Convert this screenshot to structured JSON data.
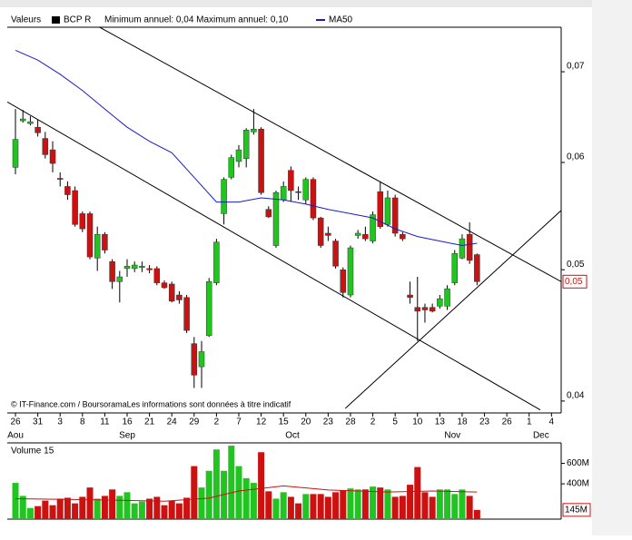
{
  "chart_data": [
    {
      "type": "candlestick",
      "legend_title": "Valeurs",
      "annotation": "Minimum annuel: 0,04 Maximum annuel: 0,10",
      "source": "© IT-Finance.com / BoursoramaLes informations sont données à titre indicatif",
      "log_y": true,
      "xlim": [
        -1.1,
        73.3
      ],
      "ylim": [
        0.0392,
        0.0755
      ],
      "yticks": [
        {
          "value": 0.04,
          "label": "0,04"
        },
        {
          "value": 0.05,
          "label": "0,05"
        },
        {
          "value": 0.06,
          "label": "0,06"
        },
        {
          "value": 0.07,
          "label": "0,07"
        }
      ],
      "xticks": [
        {
          "value": 0,
          "label": "26"
        },
        {
          "value": 3,
          "label": "31"
        },
        {
          "value": 6,
          "label": "3"
        },
        {
          "value": 9,
          "label": "8"
        },
        {
          "value": 12,
          "label": "11"
        },
        {
          "value": 15,
          "label": "16"
        },
        {
          "value": 18,
          "label": "21"
        },
        {
          "value": 21,
          "label": "24"
        },
        {
          "value": 24,
          "label": "29"
        },
        {
          "value": 27,
          "label": "2"
        },
        {
          "value": 30,
          "label": "7"
        },
        {
          "value": 33,
          "label": "12"
        },
        {
          "value": 36,
          "label": "15"
        },
        {
          "value": 39,
          "label": "20"
        },
        {
          "value": 42,
          "label": "23"
        },
        {
          "value": 45,
          "label": "28"
        },
        {
          "value": 48,
          "label": "2"
        },
        {
          "value": 51,
          "label": "5"
        },
        {
          "value": 54,
          "label": "10"
        },
        {
          "value": 57,
          "label": "13"
        },
        {
          "value": 60,
          "label": "18"
        },
        {
          "value": 63,
          "label": "23"
        },
        {
          "value": 66,
          "label": "26"
        },
        {
          "value": 69,
          "label": "1"
        },
        {
          "value": 72,
          "label": "4"
        }
      ],
      "month_ticks": [
        {
          "value": 0,
          "label": "Aou"
        },
        {
          "value": 15,
          "label": "Sep"
        },
        {
          "value": 37.2,
          "label": "Oct"
        },
        {
          "value": 58.7,
          "label": "Nov"
        },
        {
          "value": 70.6,
          "label": "Dec"
        }
      ],
      "series": [
        {
          "name": "BCP R",
          "color": "#000000",
          "up_color": "#22c422",
          "down_color": "#cc1111",
          "x": [
            0,
            1,
            2,
            3,
            4,
            5,
            6,
            7,
            8,
            9,
            10,
            11,
            12,
            13,
            14,
            15,
            16,
            17,
            18,
            19,
            20,
            21,
            22,
            23,
            24,
            25,
            26,
            27,
            28,
            29,
            30,
            31,
            32,
            33,
            34,
            35,
            36,
            37,
            38,
            39,
            40,
            41,
            42,
            43,
            44,
            45,
            46,
            47,
            48,
            49,
            50,
            51,
            52,
            53,
            54,
            55,
            56,
            57,
            58,
            59,
            60,
            61,
            62
          ],
          "open": [
            0.0595,
            0.0644,
            0.0641,
            0.0637,
            0.0625,
            0.0613,
            0.0584,
            0.0576,
            0.0572,
            0.055,
            0.055,
            0.051,
            0.0531,
            0.0507,
            0.049,
            0.0501,
            0.0501,
            0.0502,
            0.0501,
            0.0501,
            0.0489,
            0.0488,
            0.0479,
            0.0477,
            0.0441,
            0.0424,
            0.0447,
            0.0489,
            0.055,
            0.0585,
            0.0601,
            0.0604,
            0.0632,
            0.0635,
            0.0554,
            0.0521,
            0.0563,
            0.0592,
            0.0571,
            0.0563,
            0.0583,
            0.0546,
            0.0532,
            0.0525,
            0.05,
            0.0479,
            0.053,
            0.0531,
            0.0525,
            0.0571,
            0.054,
            0.0565,
            0.0531,
            0.0479,
            0.0469,
            0.0469,
            0.0469,
            0.047,
            0.047,
            0.0489,
            0.051,
            0.0531,
            0.0513
          ],
          "high": [
            0.0657,
            0.0656,
            0.0649,
            0.0645,
            0.0632,
            0.0622,
            0.059,
            0.0581,
            0.0576,
            0.0552,
            0.0552,
            0.0538,
            0.0533,
            0.0509,
            0.0499,
            0.0509,
            0.0507,
            0.0507,
            0.0504,
            0.0503,
            0.0491,
            0.049,
            0.0482,
            0.0479,
            0.0446,
            0.0443,
            0.0493,
            0.0527,
            0.0585,
            0.0608,
            0.0618,
            0.0636,
            0.0657,
            0.0637,
            0.0557,
            0.0572,
            0.0581,
            0.0596,
            0.0576,
            0.0585,
            0.0585,
            0.0547,
            0.0538,
            0.0527,
            0.0502,
            0.0521,
            0.0535,
            0.0538,
            0.0552,
            0.0581,
            0.0572,
            0.0568,
            0.0533,
            0.049,
            0.0494,
            0.0472,
            0.0472,
            0.0479,
            0.0487,
            0.0517,
            0.0531,
            0.0542,
            0.0514
          ],
          "low": [
            0.0588,
            0.0642,
            0.0639,
            0.0627,
            0.0604,
            0.059,
            0.0576,
            0.0563,
            0.0538,
            0.0533,
            0.0509,
            0.0499,
            0.0514,
            0.0484,
            0.0473,
            0.0494,
            0.0498,
            0.0498,
            0.0497,
            0.0487,
            0.0484,
            0.0473,
            0.0472,
            0.0449,
            0.0409,
            0.0409,
            0.0446,
            0.0487,
            0.054,
            0.0583,
            0.0595,
            0.0595,
            0.0629,
            0.0568,
            0.0546,
            0.0519,
            0.0561,
            0.0561,
            0.0563,
            0.0559,
            0.0544,
            0.0519,
            0.0525,
            0.0501,
            0.0477,
            0.0477,
            0.0527,
            0.0525,
            0.0523,
            0.0536,
            0.0538,
            0.0529,
            0.0525,
            0.0472,
            0.0443,
            0.0457,
            0.0465,
            0.0468,
            0.0467,
            0.0487,
            0.0509,
            0.0505,
            0.0487
          ],
          "close": [
            0.0624,
            0.0646,
            0.0643,
            0.0631,
            0.0608,
            0.0599,
            0.0583,
            0.0568,
            0.054,
            0.0536,
            0.0511,
            0.0531,
            0.0517,
            0.049,
            0.0494,
            0.0503,
            0.0504,
            0.0503,
            0.05,
            0.0489,
            0.0485,
            0.0474,
            0.0475,
            0.0451,
            0.0418,
            0.0435,
            0.049,
            0.0524,
            0.0583,
            0.0605,
            0.0613,
            0.0634,
            0.0635,
            0.057,
            0.0547,
            0.057,
            0.0576,
            0.0572,
            0.057,
            0.0583,
            0.0546,
            0.0521,
            0.053,
            0.0503,
            0.0481,
            0.0519,
            0.0532,
            0.0527,
            0.0549,
            0.0538,
            0.0565,
            0.0532,
            0.0527,
            0.0477,
            0.0466,
            0.0467,
            0.0466,
            0.0476,
            0.0484,
            0.0514,
            0.0527,
            0.0508,
            0.049
          ]
        },
        {
          "name": "MA50",
          "color": "#1a1acc",
          "x": [
            0,
            3,
            6,
            9,
            12,
            15,
            18,
            21,
            24,
            27,
            30,
            33,
            36,
            39,
            42,
            45,
            48,
            51,
            54,
            57,
            60,
            62
          ],
          "values": [
            0.0726,
            0.0714,
            0.0697,
            0.0678,
            0.0657,
            0.0637,
            0.0622,
            0.061,
            0.0585,
            0.0561,
            0.0561,
            0.0565,
            0.0563,
            0.0559,
            0.0554,
            0.055,
            0.0546,
            0.0536,
            0.0529,
            0.0525,
            0.0521,
            0.0523
          ]
        }
      ],
      "trendlines": [
        {
          "color": "#000000",
          "x": [
            -1.1,
            70.5
          ],
          "values": [
            0.0665,
            0.0394
          ]
        },
        {
          "color": "#000000",
          "x": [
            11.3,
            73.3
          ],
          "values": [
            0.0755,
            0.049
          ]
        },
        {
          "color": "#000000",
          "x": [
            44.3,
            73.3
          ],
          "values": [
            0.0395,
            0.0553
          ]
        }
      ],
      "last_price": {
        "value": 0.049,
        "label": "0,05",
        "color": "#cc1111"
      }
    },
    {
      "type": "bar",
      "title": "Volume 15",
      "xlim": [
        -1.1,
        73.3
      ],
      "ylim": [
        55,
        800
      ],
      "yticks": [
        {
          "value": 400,
          "label": "400M"
        },
        {
          "value": 600,
          "label": "600M"
        }
      ],
      "up_color": "#22c422",
      "down_color": "#cc1111",
      "x": [
        0,
        1,
        2,
        3,
        4,
        5,
        6,
        7,
        8,
        9,
        10,
        11,
        12,
        13,
        14,
        15,
        16,
        17,
        18,
        19,
        20,
        21,
        22,
        23,
        24,
        25,
        26,
        27,
        28,
        29,
        30,
        31,
        32,
        33,
        34,
        35,
        36,
        37,
        38,
        39,
        40,
        41,
        42,
        43,
        44,
        45,
        46,
        47,
        48,
        49,
        50,
        51,
        52,
        53,
        54,
        55,
        56,
        57,
        58,
        59,
        60,
        61,
        62
      ],
      "values": [
        409,
        282,
        164,
        182,
        236,
        191,
        255,
        264,
        209,
        273,
        364,
        255,
        282,
        345,
        282,
        318,
        209,
        227,
        255,
        273,
        191,
        236,
        209,
        264,
        573,
        364,
        527,
        736,
        527,
        773,
        573,
        455,
        409,
        709,
        327,
        255,
        318,
        273,
        209,
        300,
        300,
        300,
        273,
        318,
        336,
        355,
        345,
        345,
        373,
        364,
        345,
        273,
        282,
        391,
        564,
        318,
        273,
        345,
        345,
        300,
        345,
        282,
        145
      ],
      "ma": {
        "color": "#cc1111",
        "x": [
          0,
          10,
          20,
          26,
          30,
          36,
          42,
          50,
          56,
          62
        ],
        "values": [
          255,
          245,
          230,
          260,
          330,
          380,
          340,
          320,
          330,
          320
        ]
      },
      "last_value": {
        "value": 145,
        "label": "145M",
        "color": "#cc1111"
      }
    }
  ]
}
